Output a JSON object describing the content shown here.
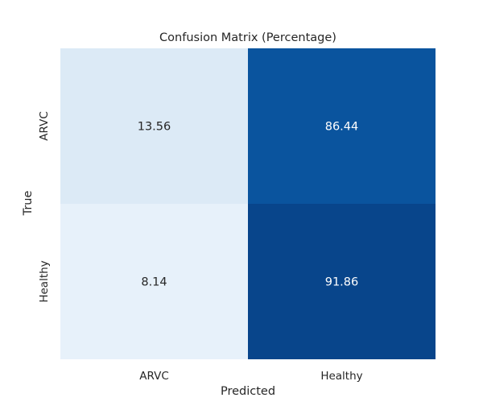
{
  "chart_data": {
    "type": "heatmap",
    "title": "Confusion Matrix (Percentage)",
    "xlabel": "Predicted",
    "ylabel": "True",
    "x_categories": [
      "ARVC",
      "Healthy"
    ],
    "y_categories": [
      "ARVC",
      "Healthy"
    ],
    "values": [
      [
        13.56,
        86.44
      ],
      [
        8.14,
        91.86
      ]
    ],
    "value_labels": [
      [
        "13.56",
        "86.44"
      ],
      [
        "8.14",
        "91.86"
      ]
    ],
    "colormap": "Blues",
    "value_range": [
      0,
      100
    ],
    "colorbar": false,
    "grid": false
  }
}
